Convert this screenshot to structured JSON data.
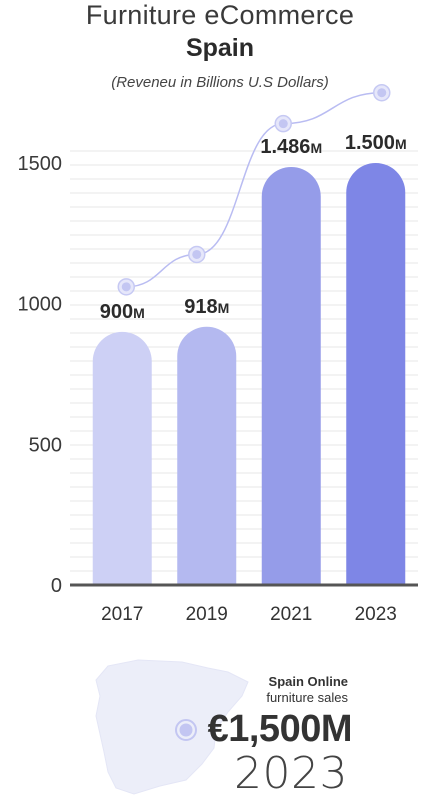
{
  "chart_data": {
    "type": "bar",
    "title": "Furniture eCommerce",
    "subtitle": "Spain",
    "note": "(Reveneu in Billions U.S Dollars)",
    "categories": [
      "2017",
      "2019",
      "2021",
      "2023"
    ],
    "values": [
      900,
      918,
      1486,
      1500
    ],
    "data_labels": [
      "900M",
      "918M",
      "1.486M",
      "1.500M"
    ],
    "y_ticks": [
      0,
      500,
      1000,
      1500
    ],
    "ylim": [
      0,
      1500
    ],
    "trend_line": {
      "visible": true,
      "points": [
        1060,
        1175,
        1640,
        1750
      ]
    },
    "colors": {
      "bars": [
        "#cdd0f5",
        "#b4b9f0",
        "#959ce9",
        "#7e86e6"
      ],
      "trend": "#b9bcf2",
      "grid": "#e7e7e7",
      "axis": "#555555"
    },
    "grid": true,
    "legend": "none"
  },
  "highlight": {
    "label_strong": "Spain Online",
    "label": "furniture sales",
    "value": "€1,500M",
    "year": "2023",
    "map_icon": "spain-map-icon"
  }
}
